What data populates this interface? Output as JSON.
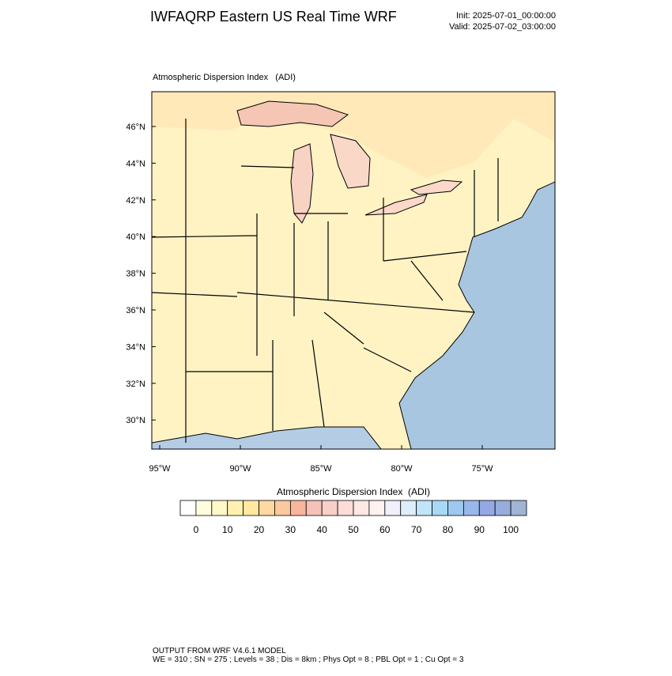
{
  "header": {
    "title": "IWFAQRP Eastern US Real Time WRF",
    "init": "Init: 2025-07-01_00:00:00",
    "valid": "Valid: 2025-07-02_03:00:00"
  },
  "map": {
    "title": "Atmospheric Dispersion Index   (ADI)",
    "lat_labels": [
      {
        "value": 46,
        "label": "46°N"
      },
      {
        "value": 44,
        "label": "44°N"
      },
      {
        "value": 42,
        "label": "42°N"
      },
      {
        "value": 40,
        "label": "40°N"
      },
      {
        "value": 38,
        "label": "38°N"
      },
      {
        "value": 36,
        "label": "36°N"
      },
      {
        "value": 34,
        "label": "34°N"
      },
      {
        "value": 32,
        "label": "32°N"
      },
      {
        "value": 30,
        "label": "30°N"
      }
    ],
    "lon_labels": [
      {
        "value": -95,
        "label": "95°W"
      },
      {
        "value": -90,
        "label": "90°W"
      },
      {
        "value": -85,
        "label": "85°W"
      },
      {
        "value": -80,
        "label": "80°W"
      },
      {
        "value": -75,
        "label": "75°W"
      }
    ]
  },
  "colorbar": {
    "title": "Atmospheric Dispersion Index  (ADI)",
    "colors": [
      "#ffffff",
      "#fffde0",
      "#fff8c8",
      "#fff2b0",
      "#ffe8a0",
      "#ffd9a0",
      "#fcc8a0",
      "#f9b59e",
      "#f7c0b8",
      "#f9d0c8",
      "#fbdcd6",
      "#fde8e4",
      "#fef2f0",
      "#f0f0fa",
      "#dceefa",
      "#c0e4f8",
      "#a8d8f4",
      "#9ec8f0",
      "#98b8ec",
      "#94a8e4",
      "#98acdc",
      "#a0b4d4"
    ],
    "ticks": [
      0,
      10,
      20,
      30,
      40,
      50,
      60,
      70,
      80,
      90,
      100
    ]
  },
  "footer": {
    "line1": "OUTPUT FROM WRF V4.6.1 MODEL",
    "line2": "WE = 310 ; SN = 275 ; Levels = 38 ; Dis = 8km ; Phys Opt = 8 ; PBL Opt = 1 ; Cu Opt = 3"
  }
}
